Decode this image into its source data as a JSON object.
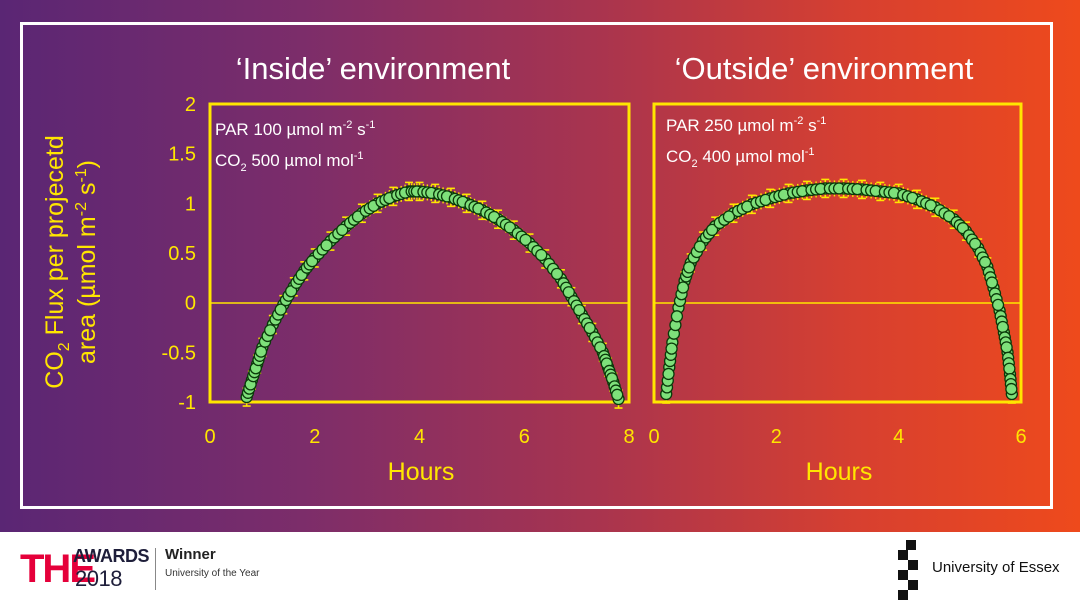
{
  "colors": {
    "axis": "#ffe600",
    "marker_fill": "#7ee07a",
    "marker_stroke": "#0a3a0a",
    "errorbar": "#ffe600",
    "title": "#ffffff"
  },
  "y_axis_label": {
    "line1_pre": "CO",
    "line1_sub": "2",
    "line1_post": " Flux per projecetd",
    "line2_pre": "area (µmol m",
    "line2_sup1": "-2",
    "line2_mid": " s",
    "line2_sup2": "-1",
    "line2_post": ")"
  },
  "panels": [
    {
      "title": "‘Inside’ environment",
      "xlabel": "Hours",
      "ann1": {
        "pre": "PAR 100 µmol m",
        "sup1": "-2",
        "mid": " s",
        "sup2": "-1"
      },
      "ann2": {
        "pre": "CO",
        "sub": "2",
        "mid": " 500 µmol mol",
        "sup": "-1"
      }
    },
    {
      "title": "‘Outside’ environment",
      "xlabel": "Hours",
      "ann1": {
        "pre": "PAR 250 µmol m",
        "sup1": "-2",
        "mid": " s",
        "sup2": "-1"
      },
      "ann2": {
        "pre": "CO",
        "sub": "2",
        "mid": " 400 µmol mol",
        "sup": "-1"
      }
    }
  ],
  "chart_data": [
    {
      "type": "scatter",
      "title": "‘Inside’ environment",
      "xlabel": "Hours",
      "ylabel": "CO2 Flux per projecetd area (µmol m-2 s-1)",
      "xlim": [
        0,
        8
      ],
      "ylim": [
        -1,
        2
      ],
      "x_ticks": [
        0,
        2,
        4,
        6,
        8
      ],
      "y_ticks": [
        -1,
        -0.5,
        0,
        0.5,
        1,
        1.5,
        2
      ],
      "error_bars": true,
      "x": [
        0.7,
        0.8,
        0.9,
        1.0,
        1.2,
        1.4,
        1.6,
        1.8,
        2.0,
        2.3,
        2.6,
        2.9,
        3.2,
        3.5,
        3.8,
        4.0,
        4.3,
        4.6,
        4.9,
        5.2,
        5.5,
        5.8,
        6.1,
        6.4,
        6.7,
        6.9,
        7.1,
        7.3,
        7.5,
        7.6,
        7.7,
        7.8
      ],
      "y": [
        -0.95,
        -0.78,
        -0.62,
        -0.45,
        -0.22,
        -0.02,
        0.16,
        0.32,
        0.45,
        0.62,
        0.77,
        0.9,
        1.0,
        1.07,
        1.12,
        1.12,
        1.1,
        1.06,
        1.0,
        0.93,
        0.84,
        0.73,
        0.6,
        0.44,
        0.24,
        0.06,
        -0.12,
        -0.3,
        -0.5,
        -0.65,
        -0.8,
        -0.97
      ]
    },
    {
      "type": "scatter",
      "title": "‘Outside’ environment",
      "xlabel": "Hours",
      "xlim": [
        0,
        6
      ],
      "ylim": [
        -1,
        2
      ],
      "x_ticks": [
        0,
        2,
        4,
        6
      ],
      "error_bars": true,
      "x": [
        0.2,
        0.25,
        0.3,
        0.4,
        0.5,
        0.6,
        0.8,
        1.0,
        1.3,
        1.6,
        1.9,
        2.2,
        2.5,
        2.8,
        3.1,
        3.4,
        3.7,
        4.0,
        4.3,
        4.6,
        4.9,
        5.1,
        5.3,
        5.45,
        5.55,
        5.65,
        5.72,
        5.78,
        5.82,
        5.85
      ],
      "y": [
        -0.92,
        -0.65,
        -0.4,
        -0.05,
        0.22,
        0.4,
        0.62,
        0.77,
        0.9,
        0.99,
        1.05,
        1.1,
        1.13,
        1.15,
        1.15,
        1.14,
        1.12,
        1.1,
        1.04,
        0.96,
        0.84,
        0.72,
        0.55,
        0.36,
        0.15,
        -0.08,
        -0.3,
        -0.5,
        -0.72,
        -0.92
      ]
    }
  ],
  "footer": {
    "the": "THE",
    "awards": "AWARDS",
    "year": "2018",
    "winner": "Winner",
    "university_of_the_year": "University of the Year",
    "essex": "University of Essex"
  }
}
